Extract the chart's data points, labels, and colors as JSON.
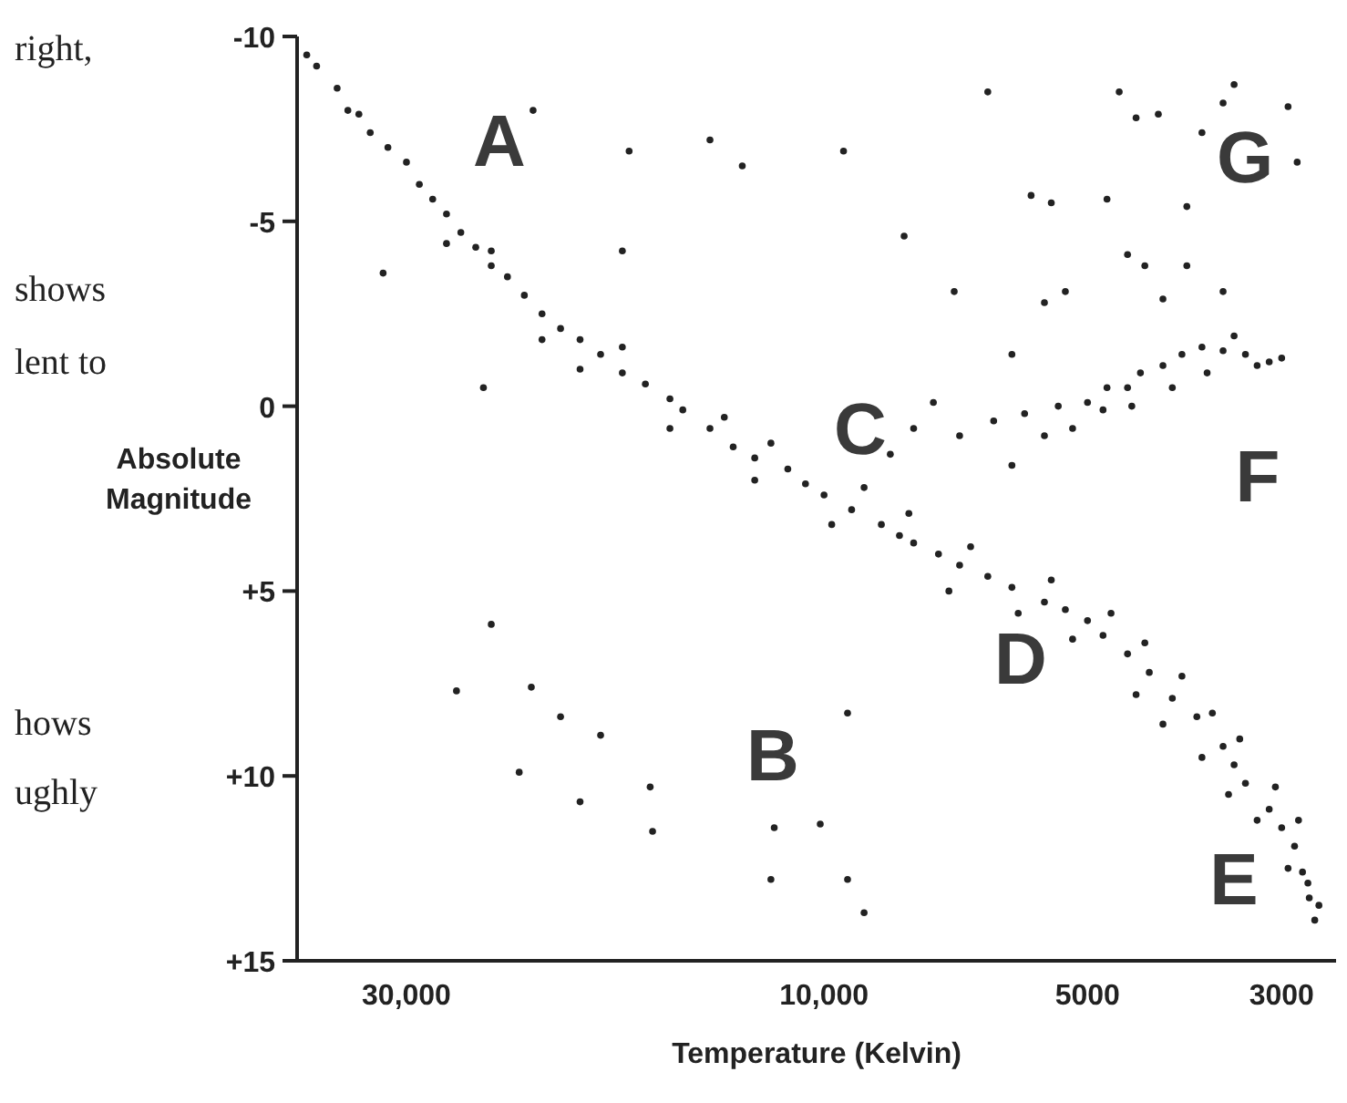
{
  "chart_data": {
    "type": "scatter",
    "xlabel": "Temperature (Kelvin)",
    "ylabel": "Absolute Magnitude",
    "log": "x",
    "marker": "circle",
    "xlim": [
      40000,
      2600
    ],
    "xticks": [
      {
        "value": 30000,
        "label": "30,000"
      },
      {
        "value": 10000,
        "label": "10,000"
      },
      5000,
      3000
    ],
    "ylim": [
      15,
      -10
    ],
    "yticks": [
      -10,
      -5,
      0,
      {
        "value": 5,
        "label": "+5"
      },
      {
        "value": 10,
        "label": "+10"
      },
      {
        "value": 15,
        "label": "+15"
      }
    ],
    "annotations": [
      "A",
      "B",
      "C",
      "D",
      "E",
      "F",
      "G",
      "right,",
      "shows",
      "lent to",
      "hows",
      "ughly"
    ],
    "series": [
      {
        "color": "#222222",
        "x": [
          39000,
          38000,
          36000,
          34000,
          33000,
          31500,
          30000,
          29000,
          28000,
          27000,
          26000,
          25000,
          24000,
          23000,
          22000,
          21000,
          20000,
          19000,
          18000,
          17000,
          16000,
          15000,
          14500,
          13500,
          12700,
          12000,
          11000,
          10500,
          10000,
          9300,
          8600,
          8200,
          7900,
          7400,
          7000,
          6500,
          6100,
          5600,
          5300,
          5000,
          4800,
          4500,
          4250,
          4000,
          3750,
          3500,
          3400,
          3300,
          3100,
          3000,
          2900,
          2840,
          2790,
          2750,
          35000,
          27000,
          24000,
          21000,
          19000,
          17000,
          15000,
          13000,
          12000,
          11500,
          9800,
          9000,
          8000,
          7200,
          6800,
          6000,
          5500,
          5200,
          4700,
          4400,
          4300,
          4100,
          3900,
          3700,
          3600,
          3450,
          3350,
          3200,
          3050,
          2950,
          2870,
          2800,
          2720,
          21500,
          16700,
          13500,
          12400,
          9500,
          8100,
          31900,
          17000,
          24500,
          24000,
          26300,
          21600,
          20000,
          18000,
          22300,
          19000,
          15800,
          15700,
          11400,
          9400,
          9400,
          10100,
          11500,
          9000,
          7000,
          6400,
          5900,
          5400,
          5000,
          4750,
          4500,
          4350,
          4100,
          3900,
          3700,
          3500,
          3300,
          3100,
          3000,
          5600,
          5200,
          4800,
          4450,
          4000,
          3650,
          3400,
          3200,
          7900,
          7500,
          8400,
          6100,
          6500,
          4600,
          4400,
          4150,
          3700,
          3500,
          3400,
          2950,
          2880,
          4750,
          5800,
          5500,
          3850,
          3850,
          4500,
          4300,
          4100,
          3500,
          5600,
          5300,
          7100,
          6100
        ],
        "values": [
          -9.5,
          -9.2,
          -8.6,
          -7.9,
          -7.4,
          -7.0,
          -6.6,
          -6.0,
          -5.6,
          -5.2,
          -4.7,
          -4.3,
          -3.8,
          -3.5,
          -3.0,
          -2.5,
          -2.1,
          -1.8,
          -1.4,
          -0.9,
          -0.6,
          -0.2,
          0.1,
          0.6,
          1.1,
          1.4,
          1.7,
          2.1,
          2.4,
          2.8,
          3.2,
          3.5,
          3.7,
          4.0,
          4.3,
          4.6,
          4.9,
          5.3,
          5.5,
          5.8,
          6.2,
          6.7,
          7.2,
          7.9,
          8.4,
          9.2,
          9.7,
          10.2,
          10.9,
          11.4,
          11.9,
          12.6,
          13.3,
          13.9,
          -8.0,
          -4.4,
          -4.2,
          -1.8,
          -1.0,
          -1.6,
          0.6,
          0.3,
          2.0,
          1.0,
          3.2,
          2.2,
          2.9,
          5.0,
          3.8,
          5.6,
          4.7,
          6.3,
          5.6,
          7.8,
          6.4,
          8.6,
          7.3,
          9.5,
          8.3,
          10.5,
          9.0,
          11.2,
          10.3,
          12.5,
          11.2,
          12.9,
          13.5,
          -8.0,
          -6.9,
          -7.2,
          -6.5,
          -6.9,
          -4.6,
          -3.6,
          -4.2,
          -0.5,
          5.9,
          7.7,
          7.6,
          8.4,
          8.9,
          9.9,
          10.7,
          10.3,
          11.5,
          11.4,
          8.3,
          12.8,
          11.3,
          12.8,
          13.7,
          0.8,
          0.4,
          0.2,
          0.0,
          -0.1,
          -0.5,
          -0.5,
          -0.9,
          -1.1,
          -1.4,
          -1.6,
          -1.5,
          -1.4,
          -1.2,
          -1.3,
          0.8,
          0.6,
          0.1,
          0.0,
          -0.5,
          -0.9,
          -1.9,
          -1.1,
          0.6,
          -0.1,
          1.3,
          1.6,
          -8.5,
          -8.5,
          -7.8,
          -7.9,
          -7.4,
          -8.2,
          -8.7,
          -8.1,
          -6.6,
          -5.6,
          -5.7,
          -5.5,
          -5.4,
          -3.8,
          -4.1,
          -3.8,
          -2.9,
          -3.1,
          -2.8,
          -3.1,
          -3.1,
          -1.4
        ]
      }
    ]
  }
}
